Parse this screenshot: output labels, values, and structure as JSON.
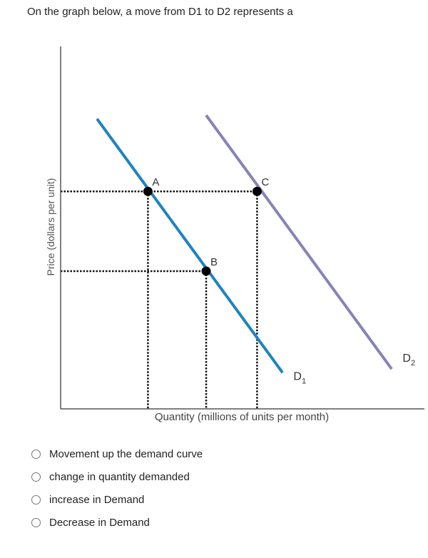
{
  "question": {
    "text": "On the graph below, a move from D1 to D2 represents a"
  },
  "chart_data": {
    "type": "line",
    "xlabel": "Quantity (millions of units per month)",
    "ylabel": "Price (dollars per unit)",
    "xlim": [
      0,
      100
    ],
    "ylim": [
      0,
      100
    ],
    "grid": false,
    "series": [
      {
        "name": "D",
        "subscript": "1",
        "color": "#1f83bf",
        "x": [
          10,
          61
        ],
        "y": [
          80,
          10
        ],
        "label_at": [
          64,
          8
        ]
      },
      {
        "name": "D",
        "subscript": "2",
        "color": "#8783b8",
        "x": [
          40,
          91
        ],
        "y": [
          81,
          11
        ],
        "label_at": [
          94,
          13
        ]
      }
    ],
    "points": [
      {
        "label": "A",
        "x": 24,
        "y": 60
      },
      {
        "label": "B",
        "x": 40,
        "y": 38
      },
      {
        "label": "C",
        "x": 54,
        "y": 60
      }
    ]
  },
  "options": [
    {
      "label": "Movement up the demand curve",
      "selected": false
    },
    {
      "label": "change in quantity demanded",
      "selected": false
    },
    {
      "label": "increase in Demand",
      "selected": false
    },
    {
      "label": "Decrease in Demand",
      "selected": false
    }
  ]
}
